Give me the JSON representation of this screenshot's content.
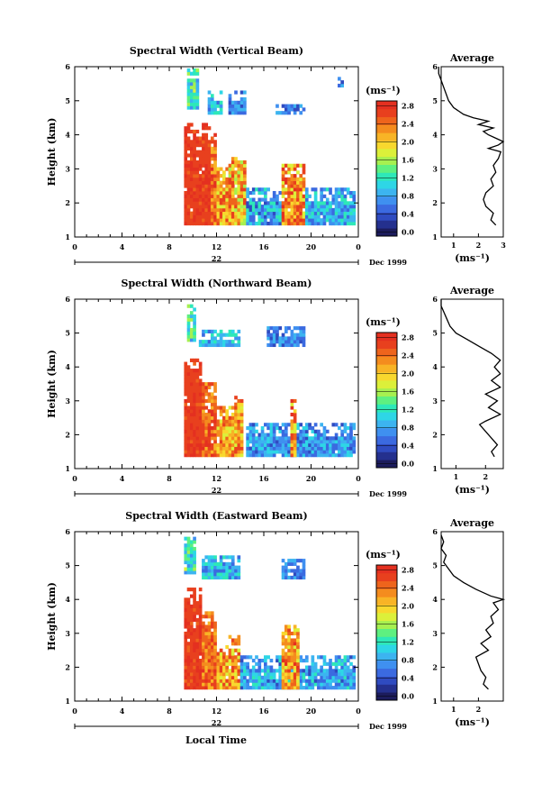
{
  "figure": {
    "xlabel": "Local Time",
    "date_label": "Dec 1999",
    "day_label": "22",
    "colorbar_unit": "(ms⁻¹)",
    "colorbar_ticks": [
      "0.0",
      "0.4",
      "0.8",
      "1.2",
      "1.6",
      "2.0",
      "2.4",
      "2.8"
    ],
    "colormap": [
      "#1c1c5c",
      "#24308e",
      "#2f4bc0",
      "#3b6ae0",
      "#3f90f0",
      "#3cb4f0",
      "#2ed6e6",
      "#2ee8b8",
      "#5ef080",
      "#a6f050",
      "#dcf03a",
      "#f8d82e",
      "#f8b426",
      "#f48c1e",
      "#ee641c",
      "#e8401e",
      "#e43020"
    ],
    "panels": [
      {
        "title": "Spectral Width (Vertical Beam)",
        "average_title": "Average",
        "average_unit": "(ms⁻¹)",
        "average_ticks": [
          "1",
          "2",
          "3"
        ]
      },
      {
        "title": "Spectral Width (Northward Beam)",
        "average_title": "Average",
        "average_unit": "(ms⁻¹)",
        "average_ticks": [
          "1",
          "2"
        ]
      },
      {
        "title": "Spectral Width (Eastward Beam)",
        "average_title": "Average",
        "average_unit": "(ms⁻¹)",
        "average_ticks": [
          "1",
          "2"
        ]
      }
    ]
  },
  "chart_data": [
    {
      "type": "heatmap",
      "title": "Spectral Width (Vertical Beam)",
      "xlabel": "",
      "ylabel": "Height (km)",
      "xlim": [
        0,
        24
      ],
      "ylim": [
        1,
        6
      ],
      "xticks": [
        "0",
        "4",
        "8",
        "12",
        "16",
        "20",
        "0"
      ],
      "yticks": [
        "1",
        "2",
        "3",
        "4",
        "5",
        "6"
      ],
      "zlim": [
        0,
        3.0
      ],
      "zunit": "(ms⁻¹)",
      "colorbar_ticks": [
        0.0,
        0.4,
        0.8,
        1.2,
        1.6,
        2.0,
        2.4,
        2.8
      ],
      "time_step_h": 0.25,
      "height_step_km": 0.1,
      "regions": [
        {
          "t": [
            9.25,
            11.5
          ],
          "h": [
            1.35,
            4.3
          ],
          "w": [
            2.7,
            3.0
          ]
        },
        {
          "t": [
            11.5,
            12.0
          ],
          "h": [
            1.35,
            4.0
          ],
          "w": [
            2.2,
            3.0
          ]
        },
        {
          "t": [
            12.0,
            13.0
          ],
          "h": [
            1.35,
            3.0
          ],
          "w": [
            1.8,
            2.9
          ]
        },
        {
          "t": [
            13.0,
            14.5
          ],
          "h": [
            1.35,
            3.3
          ],
          "w": [
            1.6,
            2.9
          ]
        },
        {
          "t": [
            14.5,
            17.5
          ],
          "h": [
            1.35,
            2.4
          ],
          "w": [
            0.4,
            1.4
          ]
        },
        {
          "t": [
            17.5,
            19.5
          ],
          "h": [
            1.35,
            3.1
          ],
          "w": [
            1.8,
            3.0
          ]
        },
        {
          "t": [
            19.5,
            23.75
          ],
          "h": [
            1.35,
            2.4
          ],
          "w": [
            0.5,
            1.4
          ]
        },
        {
          "t": [
            9.5,
            10.5
          ],
          "h": [
            4.75,
            5.95
          ],
          "w": [
            0.8,
            1.8
          ]
        },
        {
          "t": [
            11.25,
            12.5
          ],
          "h": [
            4.6,
            5.3
          ],
          "w": [
            0.5,
            1.4
          ]
        },
        {
          "t": [
            13.0,
            14.5
          ],
          "h": [
            4.6,
            5.25
          ],
          "w": [
            0.4,
            1.0
          ]
        },
        {
          "t": [
            17.0,
            19.5
          ],
          "h": [
            4.6,
            4.85
          ],
          "w": [
            0.4,
            1.0
          ]
        },
        {
          "t": [
            22.25,
            22.75
          ],
          "h": [
            5.4,
            5.7
          ],
          "w": [
            0.4,
            0.9
          ]
        }
      ],
      "average": {
        "xlim": [
          0.5,
          3.0
        ],
        "xticks": [
          1,
          2,
          3
        ],
        "h": [
          1.35,
          1.5,
          1.7,
          1.9,
          2.1,
          2.3,
          2.5,
          2.7,
          2.9,
          3.1,
          3.3,
          3.5,
          3.6,
          3.7,
          3.8,
          3.9,
          4.0,
          4.1,
          4.2,
          4.3,
          4.4,
          4.5,
          4.6,
          4.8,
          5.0,
          5.2,
          5.4,
          5.6,
          5.8,
          6.0
        ],
        "w": [
          2.7,
          2.5,
          2.6,
          2.3,
          2.2,
          2.3,
          2.6,
          2.5,
          2.7,
          2.6,
          2.8,
          2.9,
          2.4,
          2.8,
          3.0,
          2.7,
          2.4,
          2.2,
          2.6,
          2.0,
          2.4,
          1.8,
          1.4,
          1.0,
          0.8,
          0.7,
          0.6,
          0.5,
          0.4,
          0.4
        ]
      }
    },
    {
      "type": "heatmap",
      "title": "Spectral Width (Northward Beam)",
      "xlabel": "",
      "ylabel": "Height (km)",
      "xlim": [
        0,
        24
      ],
      "ylim": [
        1,
        6
      ],
      "xticks": [
        "0",
        "4",
        "8",
        "12",
        "16",
        "20",
        "0"
      ],
      "yticks": [
        "1",
        "2",
        "3",
        "4",
        "5",
        "6"
      ],
      "zlim": [
        0,
        3.0
      ],
      "zunit": "(ms⁻¹)",
      "colorbar_ticks": [
        0.0,
        0.4,
        0.8,
        1.2,
        1.6,
        2.0,
        2.4,
        2.8
      ],
      "time_step_h": 0.25,
      "height_step_km": 0.1,
      "regions": [
        {
          "t": [
            9.25,
            10.75
          ],
          "h": [
            1.35,
            4.25
          ],
          "w": [
            2.7,
            3.0
          ]
        },
        {
          "t": [
            10.75,
            12.0
          ],
          "h": [
            1.35,
            3.5
          ],
          "w": [
            2.2,
            3.0
          ]
        },
        {
          "t": [
            12.0,
            13.5
          ],
          "h": [
            1.35,
            2.8
          ],
          "w": [
            1.8,
            2.9
          ]
        },
        {
          "t": [
            13.5,
            14.25
          ],
          "h": [
            1.35,
            3.1
          ],
          "w": [
            1.8,
            2.9
          ]
        },
        {
          "t": [
            14.5,
            23.75
          ],
          "h": [
            1.35,
            2.3
          ],
          "w": [
            0.4,
            1.2
          ]
        },
        {
          "t": [
            18.25,
            18.75
          ],
          "h": [
            1.35,
            3.0
          ],
          "w": [
            1.8,
            3.0
          ]
        },
        {
          "t": [
            9.5,
            10.25
          ],
          "h": [
            4.75,
            5.8
          ],
          "w": [
            0.8,
            1.8
          ]
        },
        {
          "t": [
            10.5,
            14.0
          ],
          "h": [
            4.6,
            5.1
          ],
          "w": [
            0.6,
            1.4
          ]
        },
        {
          "t": [
            16.25,
            19.5
          ],
          "h": [
            4.6,
            5.15
          ],
          "w": [
            0.4,
            1.0
          ]
        }
      ],
      "average": {
        "xlim": [
          0.5,
          2.6
        ],
        "xticks": [
          1,
          2
        ],
        "h": [
          1.35,
          1.5,
          1.7,
          1.9,
          2.1,
          2.3,
          2.4,
          2.6,
          2.8,
          3.0,
          3.2,
          3.4,
          3.6,
          3.8,
          4.0,
          4.2,
          4.4,
          4.6,
          4.8,
          5.0,
          5.2,
          5.4,
          5.6,
          5.8,
          6.0
        ],
        "w": [
          2.3,
          2.2,
          2.4,
          2.2,
          2.0,
          1.8,
          2.0,
          2.5,
          2.1,
          2.4,
          2.0,
          2.5,
          2.2,
          2.5,
          2.3,
          2.5,
          2.2,
          1.8,
          1.4,
          1.0,
          0.8,
          0.7,
          0.6,
          0.5,
          0.5
        ]
      }
    },
    {
      "type": "heatmap",
      "title": "Spectral Width (Eastward Beam)",
      "xlabel": "Local Time",
      "ylabel": "Height (km)",
      "xlim": [
        0,
        24
      ],
      "ylim": [
        1,
        6
      ],
      "xticks": [
        "0",
        "4",
        "8",
        "12",
        "16",
        "20",
        "0"
      ],
      "yticks": [
        "1",
        "2",
        "3",
        "4",
        "5",
        "6"
      ],
      "zlim": [
        0,
        3.0
      ],
      "zunit": "(ms⁻¹)",
      "colorbar_ticks": [
        0.0,
        0.4,
        0.8,
        1.2,
        1.6,
        2.0,
        2.4,
        2.8
      ],
      "time_step_h": 0.25,
      "height_step_km": 0.1,
      "regions": [
        {
          "t": [
            9.25,
            10.75
          ],
          "h": [
            1.35,
            4.3
          ],
          "w": [
            2.7,
            3.0
          ]
        },
        {
          "t": [
            10.75,
            12.0
          ],
          "h": [
            1.35,
            3.6
          ],
          "w": [
            2.2,
            3.0
          ]
        },
        {
          "t": [
            12.0,
            13.0
          ],
          "h": [
            1.35,
            2.6
          ],
          "w": [
            1.8,
            2.9
          ]
        },
        {
          "t": [
            13.0,
            14.0
          ],
          "h": [
            1.35,
            2.9
          ],
          "w": [
            1.8,
            2.9
          ]
        },
        {
          "t": [
            14.0,
            23.75
          ],
          "h": [
            1.35,
            2.3
          ],
          "w": [
            0.4,
            1.3
          ]
        },
        {
          "t": [
            17.5,
            19.0
          ],
          "h": [
            1.35,
            3.2
          ],
          "w": [
            1.8,
            3.0
          ]
        },
        {
          "t": [
            9.25,
            10.25
          ],
          "h": [
            4.75,
            5.85
          ],
          "w": [
            0.8,
            1.8
          ]
        },
        {
          "t": [
            10.75,
            14.0
          ],
          "h": [
            4.6,
            5.3
          ],
          "w": [
            0.5,
            1.4
          ]
        },
        {
          "t": [
            17.5,
            19.5
          ],
          "h": [
            4.6,
            5.15
          ],
          "w": [
            0.4,
            1.0
          ]
        }
      ],
      "average": {
        "xlim": [
          0.5,
          3.0
        ],
        "xticks": [
          1,
          2
        ],
        "h": [
          1.35,
          1.5,
          1.7,
          1.9,
          2.1,
          2.3,
          2.5,
          2.7,
          2.9,
          3.1,
          3.3,
          3.5,
          3.7,
          3.9,
          4.0,
          4.1,
          4.3,
          4.5,
          4.7,
          4.9,
          5.1,
          5.3,
          5.5,
          5.7,
          5.9
        ],
        "w": [
          2.4,
          2.2,
          2.3,
          2.1,
          2.0,
          1.9,
          2.4,
          2.1,
          2.5,
          2.3,
          2.6,
          2.5,
          2.8,
          2.6,
          3.0,
          2.5,
          1.9,
          1.4,
          1.0,
          0.8,
          0.6,
          0.7,
          0.5,
          0.6,
          0.5
        ]
      }
    }
  ]
}
